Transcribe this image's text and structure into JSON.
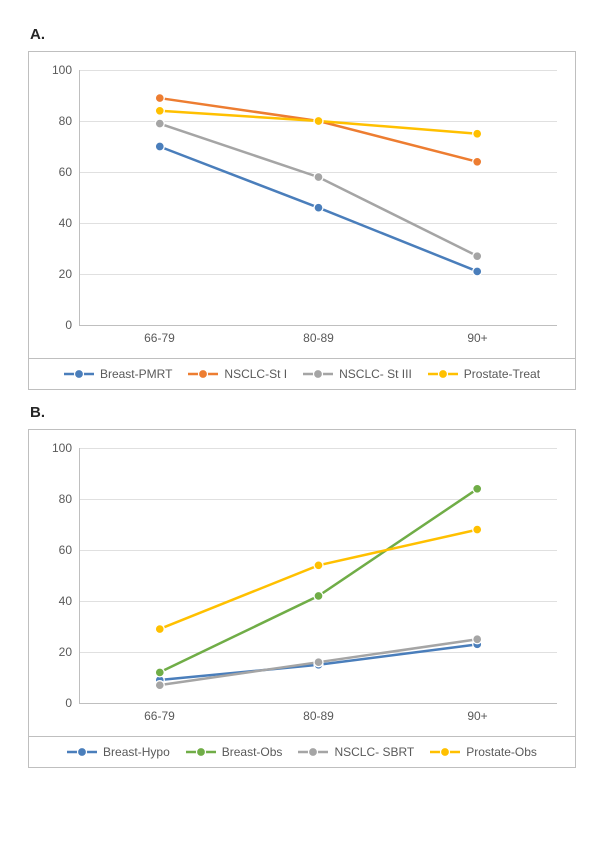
{
  "panels": {
    "A": {
      "label": "A.",
      "chart": {
        "type": "line",
        "background_color": "#ffffff",
        "grid_color": "#e0e0e0",
        "axis_color": "#bfbfbf",
        "categories": [
          "66-79",
          "80-89",
          "90+"
        ],
        "ylim": [
          0,
          100
        ],
        "ytick_step": 20,
        "label_fontsize": 12,
        "line_width": 2.5,
        "marker_radius": 4.5,
        "series": [
          {
            "name": "Breast-PMRT",
            "color": "#4a7ebb",
            "values": [
              70,
              46,
              21
            ]
          },
          {
            "name": "NSCLC-St I",
            "color": "#ed7d31",
            "values": [
              89,
              80,
              64
            ]
          },
          {
            "name": "NSCLC- St III",
            "color": "#a5a5a5",
            "values": [
              79,
              58,
              27
            ]
          },
          {
            "name": "Prostate-Treat",
            "color": "#ffc000",
            "values": [
              84,
              80,
              75
            ]
          }
        ]
      }
    },
    "B": {
      "label": "B.",
      "chart": {
        "type": "line",
        "background_color": "#ffffff",
        "grid_color": "#e0e0e0",
        "axis_color": "#bfbfbf",
        "categories": [
          "66-79",
          "80-89",
          "90+"
        ],
        "ylim": [
          0,
          100
        ],
        "ytick_step": 20,
        "label_fontsize": 12,
        "line_width": 2.5,
        "marker_radius": 4.5,
        "series": [
          {
            "name": "Breast-Hypo",
            "color": "#4a7ebb",
            "values": [
              9,
              15,
              23
            ]
          },
          {
            "name": "Breast-Obs",
            "color": "#70ad47",
            "values": [
              12,
              42,
              84
            ]
          },
          {
            "name": "NSCLC- SBRT",
            "color": "#a5a5a5",
            "values": [
              7,
              16,
              25
            ]
          },
          {
            "name": "Prostate-Obs",
            "color": "#ffc000",
            "values": [
              29,
              54,
              68
            ]
          }
        ]
      }
    }
  }
}
